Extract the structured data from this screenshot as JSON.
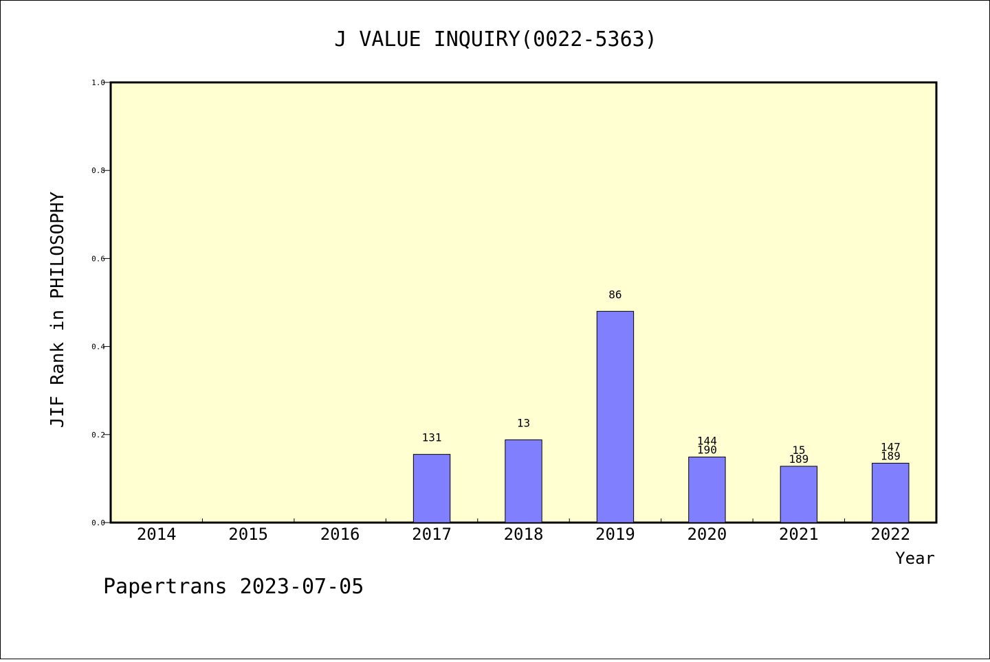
{
  "chart_data": {
    "type": "bar",
    "title": "J VALUE INQUIRY(0022-5363)",
    "xlabel": "Year",
    "ylabel": "JIF Rank in PHILOSOPHY",
    "ylim": [
      0,
      1.0
    ],
    "yticks": [
      "0.0",
      "0.2",
      "0.4",
      "0.6",
      "0.8",
      "1.0"
    ],
    "categories": [
      "2014",
      "2015",
      "2016",
      "2017",
      "2018",
      "2019",
      "2020",
      "2021",
      "2022"
    ],
    "values": [
      0,
      0,
      0,
      0.155,
      0.188,
      0.48,
      0.149,
      0.128,
      0.135
    ],
    "labels": [
      [],
      [],
      [],
      [
        "131"
      ],
      [
        "13"
      ],
      [
        "86"
      ],
      [
        "144",
        "190"
      ],
      [
        "15",
        "189"
      ],
      [
        "147",
        "189"
      ]
    ],
    "grid": false,
    "colors": {
      "plot_background": "#ffffd2",
      "bar": "#8080ff",
      "bar_edge": "#000000"
    }
  },
  "footer": {
    "text": "Papertrans 2023-07-05"
  }
}
